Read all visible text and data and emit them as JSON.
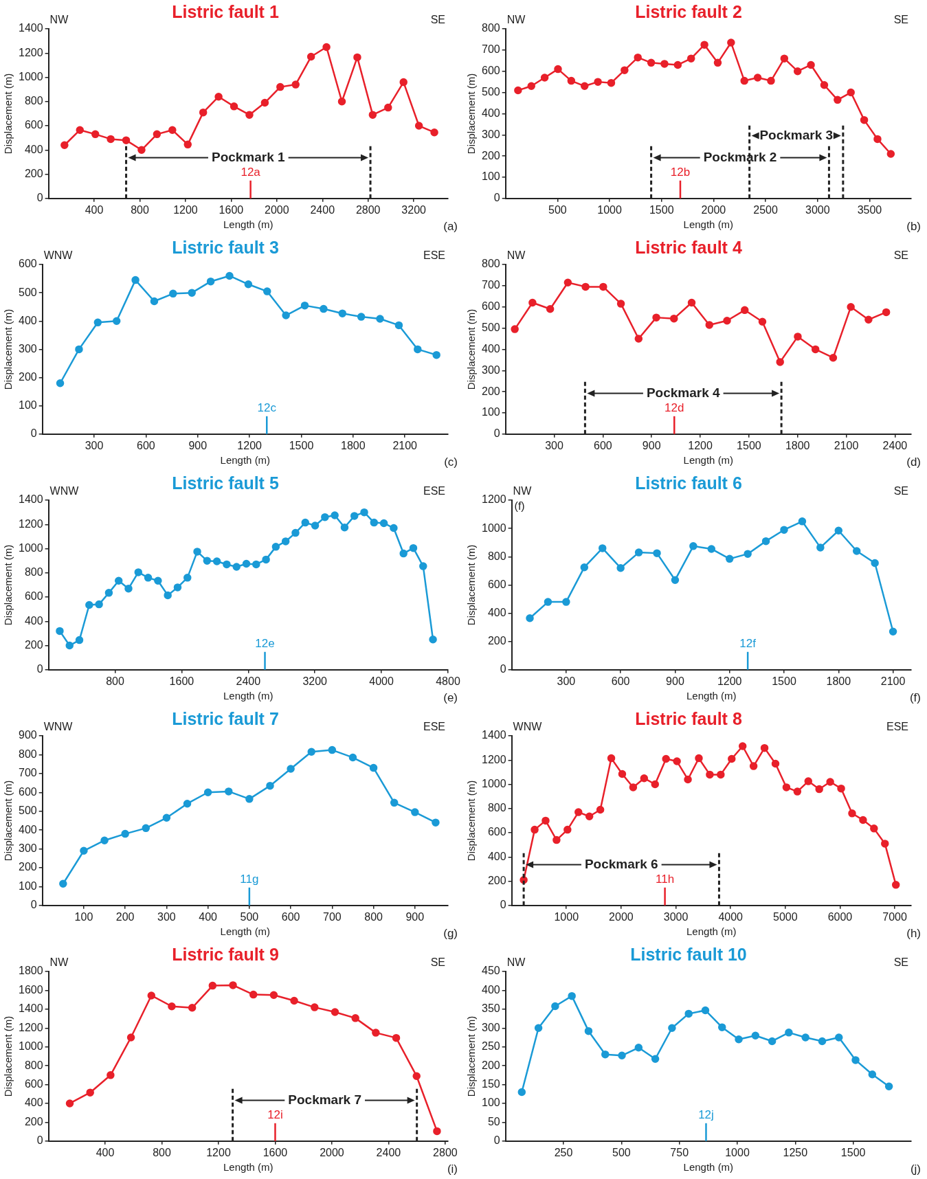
{
  "chart_data": [
    {
      "type": "line",
      "title": "Listric fault 1",
      "xlabel": "Length (m)",
      "ylabel": "Displacement (m)",
      "color": "#e8202a",
      "marker": "circle",
      "x": [
        140,
        275,
        410,
        545,
        680,
        815,
        950,
        1085,
        1220,
        1355,
        1490,
        1625,
        1760,
        1895,
        2030,
        2165,
        2300,
        2435,
        2570,
        2705,
        2840,
        2975,
        3110,
        3245,
        3380
      ],
      "values": [
        440,
        565,
        530,
        490,
        480,
        400,
        530,
        565,
        445,
        710,
        840,
        760,
        690,
        790,
        920,
        940,
        1170,
        1250,
        800,
        1165,
        690,
        750,
        960,
        600,
        545
      ],
      "xlim": [
        0,
        3500
      ],
      "xticks": [
        400,
        800,
        1200,
        1600,
        2000,
        2400,
        2800,
        3200
      ],
      "ylim": [
        0,
        1400
      ],
      "yticks": [
        0,
        200,
        400,
        600,
        800,
        1000,
        1200,
        1400
      ],
      "ref_lines": [
        {
          "axis": "x",
          "value": 1770,
          "label": "12a",
          "color": "#e8202a"
        },
        {
          "axis": "x",
          "value": 680,
          "color": "#222222",
          "line_style": "dashed"
        },
        {
          "axis": "x",
          "value": 2820,
          "color": "#222222",
          "line_style": "dashed"
        }
      ],
      "annotations": [
        "NW",
        "SE",
        "Pockmark 1",
        "(a)"
      ]
    },
    {
      "type": "line",
      "title": "Listric fault 2",
      "xlabel": "Length (m)",
      "ylabel": "Displacement (m)",
      "color": "#e8202a",
      "marker": "circle",
      "x": [
        120,
        248,
        376,
        504,
        632,
        760,
        888,
        1016,
        1144,
        1272,
        1400,
        1528,
        1656,
        1784,
        1912,
        2040,
        2168,
        2296,
        2424,
        2552,
        2680,
        2808,
        2936,
        3064,
        3192,
        3320,
        3448,
        3576,
        3704
      ],
      "values": [
        510,
        530,
        570,
        610,
        555,
        530,
        550,
        545,
        605,
        665,
        640,
        635,
        630,
        660,
        725,
        640,
        735,
        555,
        570,
        555,
        660,
        600,
        630,
        535,
        465,
        500,
        370,
        280,
        210
      ],
      "xlim": [
        0,
        3900
      ],
      "xticks": [
        500,
        1000,
        1500,
        2000,
        2500,
        3000,
        3500
      ],
      "ylim": [
        0,
        800
      ],
      "yticks": [
        0,
        100,
        200,
        300,
        400,
        500,
        600,
        700,
        800
      ],
      "ref_lines": [
        {
          "axis": "x",
          "value": 1680,
          "label": "12b",
          "color": "#e8202a"
        },
        {
          "axis": "x",
          "value": 1400,
          "color": "#222222",
          "line_style": "dashed"
        },
        {
          "axis": "x",
          "value": 3110,
          "color": "#222222",
          "line_style": "dashed"
        },
        {
          "axis": "x",
          "value": 2345,
          "color": "#222222",
          "line_style": "dashed"
        },
        {
          "axis": "x",
          "value": 3245,
          "color": "#222222",
          "line_style": "dashed"
        }
      ],
      "annotations": [
        "NW",
        "SE",
        "Pockmark 2",
        "Pockmark 3",
        "(b)"
      ]
    },
    {
      "type": "line",
      "title": "Listric fault 3",
      "xlabel": "Length (m)",
      "ylabel": "Displacement (m)",
      "color": "#1a9ad6",
      "marker": "circle",
      "x": [
        103,
        212,
        321,
        430,
        539,
        648,
        757,
        866,
        975,
        1084,
        1193,
        1302,
        1411,
        1520,
        1629,
        1738,
        1847,
        1956,
        2065,
        2174,
        2283
      ],
      "values": [
        180,
        300,
        395,
        400,
        545,
        470,
        497,
        500,
        540,
        560,
        530,
        505,
        420,
        455,
        443,
        427,
        415,
        408,
        385,
        300,
        280
      ],
      "xlim": [
        0,
        2350
      ],
      "xticks": [
        300,
        600,
        900,
        1200,
        1500,
        1800,
        2100
      ],
      "ylim": [
        0,
        600
      ],
      "yticks": [
        0,
        100,
        200,
        300,
        400,
        500,
        600
      ],
      "ref_lines": [
        {
          "axis": "x",
          "value": 1300,
          "label": "12c",
          "color": "#1a9ad6"
        }
      ],
      "annotations": [
        "WNW",
        "ESE",
        "(c)"
      ]
    },
    {
      "type": "line",
      "title": "Listric fault 4",
      "xlabel": "Length (m)",
      "ylabel": "Displacement (m)",
      "color": "#e8202a",
      "marker": "circle",
      "x": [
        57,
        166,
        275,
        384,
        493,
        602,
        711,
        820,
        929,
        1038,
        1147,
        1256,
        1365,
        1474,
        1583,
        1692,
        1801,
        1910,
        2019,
        2128,
        2237,
        2346
      ],
      "values": [
        495,
        620,
        590,
        715,
        695,
        695,
        615,
        450,
        550,
        545,
        620,
        515,
        535,
        585,
        530,
        340,
        460,
        400,
        360,
        600,
        540,
        575
      ],
      "xlim": [
        0,
        2500
      ],
      "xticks": [
        300,
        600,
        900,
        1200,
        1500,
        1800,
        2100,
        2400
      ],
      "ylim": [
        0,
        800
      ],
      "yticks": [
        0,
        100,
        200,
        300,
        400,
        500,
        600,
        700,
        800
      ],
      "ref_lines": [
        {
          "axis": "x",
          "value": 1040,
          "label": "12d",
          "color": "#e8202a"
        },
        {
          "axis": "x",
          "value": 490,
          "color": "#222222",
          "line_style": "dashed"
        },
        {
          "axis": "x",
          "value": 1700,
          "color": "#222222",
          "line_style": "dashed"
        }
      ],
      "annotations": [
        "NW",
        "SE",
        "Pockmark 4",
        "(d)"
      ]
    },
    {
      "type": "line",
      "title": "Listric fault 5",
      "xlabel": "Length (m)",
      "ylabel": "Displacement (m)",
      "color": "#1a9ad6",
      "marker": "circle",
      "x": [
        135,
        253,
        371,
        489,
        607,
        725,
        843,
        961,
        1079,
        1197,
        1315,
        1433,
        1551,
        1669,
        1787,
        1905,
        2023,
        2141,
        2259,
        2377,
        2495,
        2613,
        2731,
        2849,
        2967,
        3085,
        3203,
        3321,
        3439,
        3557,
        3675,
        3793,
        3911,
        4029,
        4147,
        4265,
        4383,
        4501,
        4619
      ],
      "values": [
        320,
        200,
        245,
        535,
        540,
        635,
        735,
        670,
        805,
        760,
        735,
        615,
        680,
        760,
        975,
        900,
        895,
        870,
        850,
        875,
        870,
        910,
        1015,
        1060,
        1130,
        1215,
        1190,
        1260,
        1275,
        1175,
        1270,
        1300,
        1215,
        1210,
        1170,
        960,
        1005,
        855,
        250
      ],
      "xlim": [
        0,
        4800
      ],
      "xticks": [
        800,
        1600,
        2400,
        3200,
        4000,
        4800
      ],
      "ylim": [
        0,
        1400
      ],
      "yticks": [
        0,
        200,
        400,
        600,
        800,
        1000,
        1200,
        1400
      ],
      "ref_lines": [
        {
          "axis": "x",
          "value": 2600,
          "label": "12e",
          "color": "#1a9ad6"
        }
      ],
      "annotations": [
        "WNW",
        "ESE",
        "(e)"
      ]
    },
    {
      "type": "line",
      "title": "Listric fault 6",
      "xlabel": "Length (m)",
      "ylabel": "Displacement (m)",
      "color": "#1a9ad6",
      "marker": "circle",
      "x": [
        100,
        200,
        300,
        400,
        500,
        600,
        700,
        800,
        900,
        1000,
        1100,
        1200,
        1300,
        1400,
        1500,
        1600,
        1700,
        1800,
        1900,
        2000,
        2100
      ],
      "values": [
        365,
        480,
        480,
        725,
        860,
        720,
        830,
        825,
        635,
        875,
        855,
        785,
        820,
        910,
        990,
        1050,
        865,
        985,
        840,
        755,
        270
      ],
      "xlim": [
        0,
        2200
      ],
      "xticks": [
        300,
        600,
        900,
        1200,
        1500,
        1800,
        2100
      ],
      "ylim": [
        0,
        1200
      ],
      "yticks": [
        0,
        200,
        400,
        600,
        800,
        1000,
        1200
      ],
      "ref_lines": [
        {
          "axis": "x",
          "value": 1300,
          "label": "12f",
          "color": "#1a9ad6"
        }
      ],
      "annotations": [
        "NW",
        "SE",
        "(f)",
        "(f)"
      ]
    },
    {
      "type": "line",
      "title": "Listric fault 7",
      "xlabel": "Length (m)",
      "ylabel": "Displacement (m)",
      "color": "#1a9ad6",
      "marker": "circle",
      "x": [
        50,
        100,
        150,
        200,
        250,
        300,
        350,
        400,
        450,
        500,
        550,
        600,
        650,
        700,
        750,
        800,
        850,
        900,
        950
      ],
      "values": [
        115,
        290,
        345,
        380,
        410,
        465,
        540,
        600,
        605,
        565,
        635,
        725,
        815,
        825,
        785,
        730,
        545,
        495,
        440
      ],
      "xlim": [
        0,
        980
      ],
      "xticks": [
        100,
        200,
        300,
        400,
        500,
        600,
        700,
        800,
        900
      ],
      "ylim": [
        0,
        900
      ],
      "yticks": [
        0,
        100,
        200,
        300,
        400,
        500,
        600,
        700,
        800,
        900
      ],
      "ref_lines": [
        {
          "axis": "x",
          "value": 500,
          "label": "11g",
          "color": "#1a9ad6"
        }
      ],
      "annotations": [
        "WNW",
        "ESE",
        "(g)"
      ]
    },
    {
      "type": "line",
      "title": "Listric fault 8",
      "xlabel": "Length (m)",
      "ylabel": "Displacement (m)",
      "color": "#e8202a",
      "marker": "circle",
      "x": [
        220,
        420,
        620,
        820,
        1020,
        1220,
        1420,
        1620,
        1820,
        2020,
        2220,
        2420,
        2620,
        2820,
        3020,
        3220,
        3420,
        3620,
        3820,
        4020,
        4220,
        4420,
        4620,
        4820,
        5020,
        5220,
        5420,
        5620,
        5820,
        6020,
        6220,
        6420,
        6620,
        6820,
        7020
      ],
      "values": [
        210,
        625,
        700,
        540,
        625,
        770,
        735,
        790,
        1215,
        1085,
        975,
        1050,
        1000,
        1210,
        1190,
        1040,
        1215,
        1080,
        1080,
        1210,
        1315,
        1150,
        1300,
        1170,
        975,
        940,
        1025,
        960,
        1020,
        965,
        760,
        705,
        635,
        510,
        170
      ],
      "xlim": [
        0,
        7300
      ],
      "xticks": [
        1000,
        2000,
        3000,
        4000,
        5000,
        6000,
        7000
      ],
      "ylim": [
        0,
        1400
      ],
      "yticks": [
        0,
        200,
        400,
        600,
        800,
        1000,
        1200,
        1400
      ],
      "ref_lines": [
        {
          "axis": "x",
          "value": 2800,
          "label": "11h",
          "color": "#e8202a"
        },
        {
          "axis": "x",
          "value": 220,
          "color": "#222222",
          "line_style": "dashed"
        },
        {
          "axis": "x",
          "value": 3790,
          "color": "#222222",
          "line_style": "dashed"
        }
      ],
      "annotations": [
        "WNW",
        "ESE",
        "Pockmark 6",
        "(h)"
      ]
    },
    {
      "type": "line",
      "title": "Listric fault 9",
      "xlabel": "Length (m)",
      "ylabel": "Displacement (m)",
      "color": "#e8202a",
      "marker": "circle",
      "x": [
        150,
        294,
        438,
        582,
        726,
        870,
        1014,
        1158,
        1302,
        1446,
        1590,
        1734,
        1878,
        2022,
        2166,
        2310,
        2454,
        2598,
        2742
      ],
      "values": [
        400,
        515,
        700,
        1100,
        1545,
        1430,
        1415,
        1650,
        1655,
        1555,
        1550,
        1490,
        1420,
        1370,
        1305,
        1150,
        1095,
        690,
        105
      ],
      "xlim": [
        0,
        2820
      ],
      "xticks": [
        400,
        800,
        1200,
        1600,
        2000,
        2400,
        2800
      ],
      "ylim": [
        0,
        1800
      ],
      "yticks": [
        0,
        200,
        400,
        600,
        800,
        1000,
        1200,
        1400,
        1600,
        1800
      ],
      "ref_lines": [
        {
          "axis": "x",
          "value": 1600,
          "label": "12i",
          "color": "#e8202a"
        },
        {
          "axis": "x",
          "value": 1300,
          "color": "#222222",
          "line_style": "dashed"
        },
        {
          "axis": "x",
          "value": 2600,
          "color": "#222222",
          "line_style": "dashed"
        }
      ],
      "annotations": [
        "NW",
        "SE",
        "Pockmark 7",
        "(i)"
      ]
    },
    {
      "type": "line",
      "title": "Listric fault 10",
      "xlabel": "Length (m)",
      "ylabel": "Displacement (m)",
      "color": "#1a9ad6",
      "marker": "circle",
      "x": [
        70,
        142,
        214,
        286,
        358,
        430,
        502,
        574,
        646,
        718,
        790,
        862,
        934,
        1006,
        1078,
        1150,
        1222,
        1294,
        1366,
        1438,
        1510,
        1582,
        1654
      ],
      "values": [
        130,
        300,
        358,
        385,
        292,
        230,
        227,
        248,
        218,
        300,
        338,
        347,
        302,
        270,
        280,
        265,
        288,
        275,
        265,
        275,
        215,
        177,
        145
      ],
      "xlim": [
        0,
        1750
      ],
      "xticks": [
        250,
        500,
        750,
        1000,
        1250,
        1500
      ],
      "ylim": [
        0,
        450
      ],
      "yticks": [
        0,
        50,
        100,
        150,
        200,
        250,
        300,
        350,
        400,
        450
      ],
      "ref_lines": [
        {
          "axis": "x",
          "value": 865,
          "label": "12j",
          "color": "#1a9ad6"
        }
      ],
      "annotations": [
        "NW",
        "SE",
        "(j)"
      ]
    }
  ]
}
